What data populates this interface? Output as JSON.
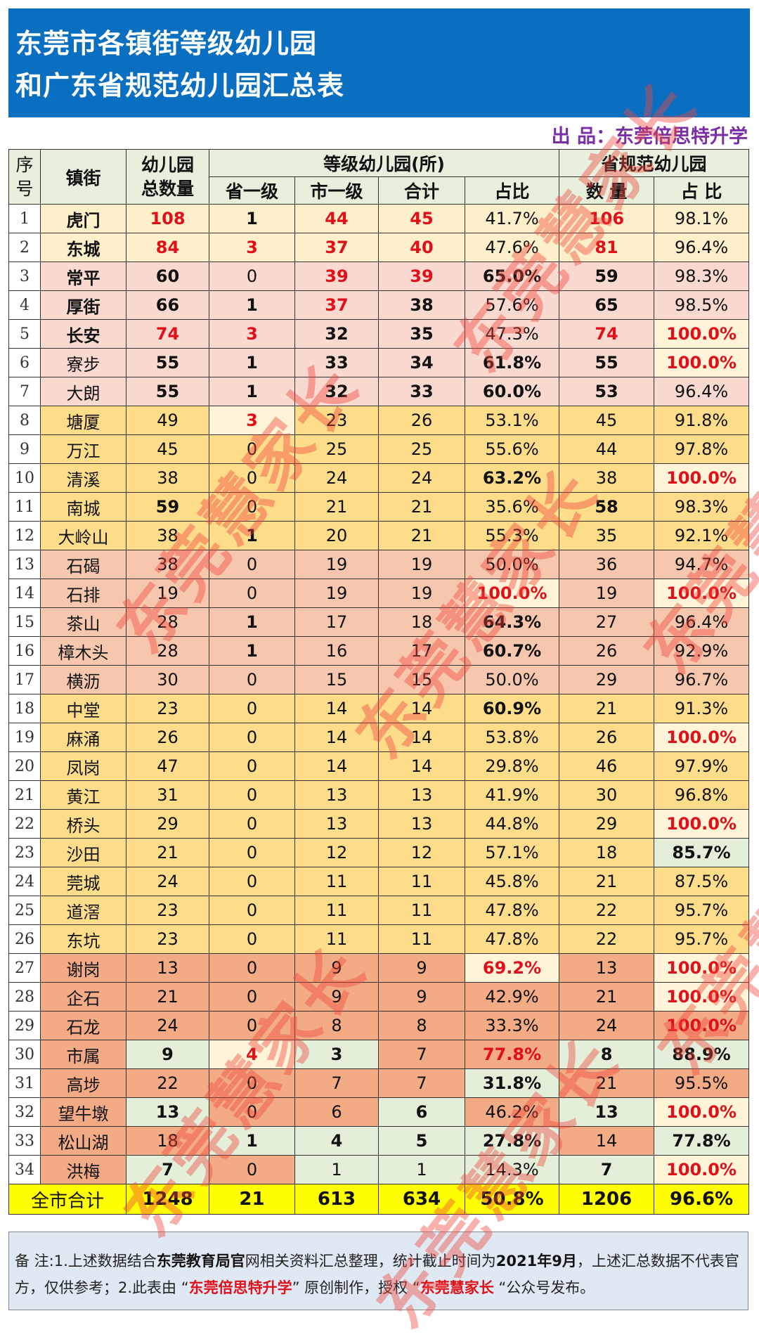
{
  "title": {
    "line1": "东莞市各镇街等级幼儿园",
    "line2": "和广东省规范幼儿园汇总表"
  },
  "credit": "出 品：东莞倍思特升学",
  "watermark": "东莞慧家长",
  "colors": {
    "title_bg": "#0b6fc1",
    "red": "#e0101a",
    "credit": "#7a2fa8",
    "total_bg": "#ffff00",
    "row_bg": {
      "cream": "#fdefc9",
      "pink": "#fadad0",
      "yellow": "#fddd8a",
      "salmonL": "#f6c7ad",
      "salmon": "#f2ab84"
    },
    "cell_bg": {
      "C": "#fff4d8",
      "G": "#e3efd9"
    }
  },
  "header": {
    "index": "序号",
    "town": "镇街",
    "total": "幼儿园总数量",
    "graded_group": "等级幼儿园(所)",
    "standard_group": "省规范幼儿园",
    "sub": [
      "省一级",
      "市一级",
      "合计",
      "占比",
      "数 量",
      "占 比"
    ]
  },
  "rows": [
    {
      "i": "1",
      "bg": "cream",
      "c": [
        [
          "虎门",
          "b"
        ],
        [
          "108",
          "rb"
        ],
        [
          "1",
          "b"
        ],
        [
          "44",
          "rb"
        ],
        [
          "45",
          "rb"
        ],
        [
          "41.7%",
          ""
        ],
        [
          "106",
          "rb"
        ],
        [
          "98.1%",
          ""
        ]
      ]
    },
    {
      "i": "2",
      "bg": "cream",
      "c": [
        [
          "东城",
          "b"
        ],
        [
          "84",
          "rb"
        ],
        [
          "3",
          "rb"
        ],
        [
          "37",
          "rb"
        ],
        [
          "40",
          "rb"
        ],
        [
          "47.6%",
          ""
        ],
        [
          "81",
          "rb"
        ],
        [
          "96.4%",
          ""
        ]
      ]
    },
    {
      "i": "3",
      "bg": "pink",
      "c": [
        [
          "常平",
          "b"
        ],
        [
          "60",
          "b"
        ],
        [
          "0",
          ""
        ],
        [
          "39",
          "rb"
        ],
        [
          "39",
          "rb"
        ],
        [
          "65.0%",
          "b"
        ],
        [
          "59",
          "b"
        ],
        [
          "98.3%",
          ""
        ]
      ]
    },
    {
      "i": "4",
      "bg": "pink",
      "c": [
        [
          "厚街",
          "b"
        ],
        [
          "66",
          "b"
        ],
        [
          "1",
          "b"
        ],
        [
          "37",
          "rb"
        ],
        [
          "38",
          "b"
        ],
        [
          "57.6%",
          ""
        ],
        [
          "65",
          "b"
        ],
        [
          "98.5%",
          ""
        ]
      ]
    },
    {
      "i": "5",
      "bg": "pink",
      "c": [
        [
          "长安",
          "b"
        ],
        [
          "74",
          "rb"
        ],
        [
          "3",
          "rb"
        ],
        [
          "32",
          "b"
        ],
        [
          "35",
          "b"
        ],
        [
          "47.3%",
          ""
        ],
        [
          "74",
          "rb"
        ],
        [
          "100.0%",
          "rbC"
        ]
      ]
    },
    {
      "i": "6",
      "bg": "pink",
      "c": [
        [
          "寮步",
          ""
        ],
        [
          "55",
          "b"
        ],
        [
          "1",
          "b"
        ],
        [
          "33",
          "b"
        ],
        [
          "34",
          "b"
        ],
        [
          "61.8%",
          "b"
        ],
        [
          "55",
          "b"
        ],
        [
          "100.0%",
          "rbC"
        ]
      ]
    },
    {
      "i": "7",
      "bg": "pink",
      "c": [
        [
          "大朗",
          ""
        ],
        [
          "55",
          "b"
        ],
        [
          "1",
          "b"
        ],
        [
          "32",
          "b"
        ],
        [
          "33",
          "b"
        ],
        [
          "60.0%",
          "b"
        ],
        [
          "53",
          "b"
        ],
        [
          "96.4%",
          ""
        ]
      ]
    },
    {
      "i": "8",
      "bg": "yellow",
      "c": [
        [
          "塘厦",
          ""
        ],
        [
          "49",
          ""
        ],
        [
          "3",
          "rbC"
        ],
        [
          "23",
          ""
        ],
        [
          "26",
          ""
        ],
        [
          "53.1%",
          ""
        ],
        [
          "45",
          ""
        ],
        [
          "91.8%",
          ""
        ]
      ]
    },
    {
      "i": "9",
      "bg": "yellow",
      "c": [
        [
          "万江",
          ""
        ],
        [
          "45",
          ""
        ],
        [
          "0",
          ""
        ],
        [
          "25",
          ""
        ],
        [
          "25",
          ""
        ],
        [
          "55.6%",
          ""
        ],
        [
          "44",
          ""
        ],
        [
          "97.8%",
          ""
        ]
      ]
    },
    {
      "i": "10",
      "bg": "yellow",
      "c": [
        [
          "清溪",
          ""
        ],
        [
          "38",
          ""
        ],
        [
          "0",
          ""
        ],
        [
          "24",
          ""
        ],
        [
          "24",
          ""
        ],
        [
          "63.2%",
          "b"
        ],
        [
          "38",
          ""
        ],
        [
          "100.0%",
          "rbC"
        ]
      ]
    },
    {
      "i": "11",
      "bg": "yellow",
      "c": [
        [
          "南城",
          ""
        ],
        [
          "59",
          "b"
        ],
        [
          "0",
          ""
        ],
        [
          "21",
          ""
        ],
        [
          "21",
          ""
        ],
        [
          "35.6%",
          ""
        ],
        [
          "58",
          "b"
        ],
        [
          "98.3%",
          ""
        ]
      ]
    },
    {
      "i": "12",
      "bg": "yellow",
      "c": [
        [
          "大岭山",
          ""
        ],
        [
          "38",
          ""
        ],
        [
          "1",
          "b"
        ],
        [
          "20",
          ""
        ],
        [
          "21",
          ""
        ],
        [
          "55.3%",
          ""
        ],
        [
          "35",
          ""
        ],
        [
          "92.1%",
          ""
        ]
      ]
    },
    {
      "i": "13",
      "bg": "salmonL",
      "c": [
        [
          "石碣",
          ""
        ],
        [
          "38",
          ""
        ],
        [
          "0",
          ""
        ],
        [
          "19",
          ""
        ],
        [
          "19",
          ""
        ],
        [
          "50.0%",
          ""
        ],
        [
          "36",
          ""
        ],
        [
          "94.7%",
          ""
        ]
      ]
    },
    {
      "i": "14",
      "bg": "salmonL",
      "c": [
        [
          "石排",
          ""
        ],
        [
          "19",
          ""
        ],
        [
          "0",
          ""
        ],
        [
          "19",
          ""
        ],
        [
          "19",
          ""
        ],
        [
          "100.0%",
          "rbC"
        ],
        [
          "19",
          ""
        ],
        [
          "100.0%",
          "rbC"
        ]
      ]
    },
    {
      "i": "15",
      "bg": "salmonL",
      "c": [
        [
          "茶山",
          ""
        ],
        [
          "28",
          ""
        ],
        [
          "1",
          "b"
        ],
        [
          "17",
          ""
        ],
        [
          "18",
          ""
        ],
        [
          "64.3%",
          "b"
        ],
        [
          "27",
          ""
        ],
        [
          "96.4%",
          ""
        ]
      ]
    },
    {
      "i": "16",
      "bg": "salmonL",
      "c": [
        [
          "樟木头",
          ""
        ],
        [
          "28",
          ""
        ],
        [
          "1",
          "b"
        ],
        [
          "16",
          ""
        ],
        [
          "17",
          ""
        ],
        [
          "60.7%",
          "b"
        ],
        [
          "26",
          ""
        ],
        [
          "92.9%",
          ""
        ]
      ]
    },
    {
      "i": "17",
      "bg": "salmonL",
      "c": [
        [
          "横沥",
          ""
        ],
        [
          "30",
          ""
        ],
        [
          "0",
          ""
        ],
        [
          "15",
          ""
        ],
        [
          "15",
          ""
        ],
        [
          "50.0%",
          ""
        ],
        [
          "29",
          ""
        ],
        [
          "96.7%",
          ""
        ]
      ]
    },
    {
      "i": "18",
      "bg": "yellow",
      "c": [
        [
          "中堂",
          ""
        ],
        [
          "23",
          ""
        ],
        [
          "0",
          ""
        ],
        [
          "14",
          ""
        ],
        [
          "14",
          ""
        ],
        [
          "60.9%",
          "b"
        ],
        [
          "21",
          ""
        ],
        [
          "91.3%",
          ""
        ]
      ]
    },
    {
      "i": "19",
      "bg": "yellow",
      "c": [
        [
          "麻涌",
          ""
        ],
        [
          "26",
          ""
        ],
        [
          "0",
          ""
        ],
        [
          "14",
          ""
        ],
        [
          "14",
          ""
        ],
        [
          "53.8%",
          ""
        ],
        [
          "26",
          ""
        ],
        [
          "100.0%",
          "rbC"
        ]
      ]
    },
    {
      "i": "20",
      "bg": "yellow",
      "c": [
        [
          "凤岗",
          ""
        ],
        [
          "47",
          ""
        ],
        [
          "0",
          ""
        ],
        [
          "14",
          ""
        ],
        [
          "14",
          ""
        ],
        [
          "29.8%",
          ""
        ],
        [
          "46",
          ""
        ],
        [
          "97.9%",
          ""
        ]
      ]
    },
    {
      "i": "21",
      "bg": "yellow",
      "c": [
        [
          "黄江",
          ""
        ],
        [
          "31",
          ""
        ],
        [
          "0",
          ""
        ],
        [
          "13",
          ""
        ],
        [
          "13",
          ""
        ],
        [
          "41.9%",
          ""
        ],
        [
          "30",
          ""
        ],
        [
          "96.8%",
          ""
        ]
      ]
    },
    {
      "i": "22",
      "bg": "yellow",
      "c": [
        [
          "桥头",
          ""
        ],
        [
          "29",
          ""
        ],
        [
          "0",
          ""
        ],
        [
          "13",
          ""
        ],
        [
          "13",
          ""
        ],
        [
          "44.8%",
          ""
        ],
        [
          "29",
          ""
        ],
        [
          "100.0%",
          "rbC"
        ]
      ]
    },
    {
      "i": "23",
      "bg": "yellow",
      "c": [
        [
          "沙田",
          ""
        ],
        [
          "21",
          ""
        ],
        [
          "0",
          ""
        ],
        [
          "12",
          ""
        ],
        [
          "12",
          ""
        ],
        [
          "57.1%",
          ""
        ],
        [
          "18",
          ""
        ],
        [
          "85.7%",
          "bG"
        ]
      ]
    },
    {
      "i": "24",
      "bg": "yellow",
      "c": [
        [
          "莞城",
          ""
        ],
        [
          "24",
          ""
        ],
        [
          "0",
          ""
        ],
        [
          "11",
          ""
        ],
        [
          "11",
          ""
        ],
        [
          "45.8%",
          ""
        ],
        [
          "21",
          ""
        ],
        [
          "87.5%",
          ""
        ]
      ]
    },
    {
      "i": "25",
      "bg": "yellow",
      "c": [
        [
          "道滘",
          ""
        ],
        [
          "23",
          ""
        ],
        [
          "0",
          ""
        ],
        [
          "11",
          ""
        ],
        [
          "11",
          ""
        ],
        [
          "47.8%",
          ""
        ],
        [
          "22",
          ""
        ],
        [
          "95.7%",
          ""
        ]
      ]
    },
    {
      "i": "26",
      "bg": "yellow",
      "c": [
        [
          "东坑",
          ""
        ],
        [
          "23",
          ""
        ],
        [
          "0",
          ""
        ],
        [
          "11",
          ""
        ],
        [
          "11",
          ""
        ],
        [
          "47.8%",
          ""
        ],
        [
          "22",
          ""
        ],
        [
          "95.7%",
          ""
        ]
      ]
    },
    {
      "i": "27",
      "bg": "salmon",
      "c": [
        [
          "谢岗",
          ""
        ],
        [
          "13",
          ""
        ],
        [
          "0",
          ""
        ],
        [
          "9",
          ""
        ],
        [
          "9",
          ""
        ],
        [
          "69.2%",
          "rbC"
        ],
        [
          "13",
          ""
        ],
        [
          "100.0%",
          "rbC"
        ]
      ]
    },
    {
      "i": "28",
      "bg": "salmon",
      "c": [
        [
          "企石",
          ""
        ],
        [
          "21",
          ""
        ],
        [
          "0",
          ""
        ],
        [
          "9",
          ""
        ],
        [
          "9",
          ""
        ],
        [
          "42.9%",
          ""
        ],
        [
          "21",
          ""
        ],
        [
          "100.0%",
          "rbC"
        ]
      ]
    },
    {
      "i": "29",
      "bg": "salmon",
      "c": [
        [
          "石龙",
          ""
        ],
        [
          "24",
          ""
        ],
        [
          "0",
          ""
        ],
        [
          "8",
          ""
        ],
        [
          "8",
          ""
        ],
        [
          "33.3%",
          ""
        ],
        [
          "24",
          ""
        ],
        [
          "100.0%",
          "rb"
        ]
      ]
    },
    {
      "i": "30",
      "bg": "salmon",
      "c": [
        [
          "市属",
          ""
        ],
        [
          "9",
          "bG"
        ],
        [
          "4",
          "rbC"
        ],
        [
          "3",
          "bG"
        ],
        [
          "7",
          ""
        ],
        [
          "77.8%",
          "rb"
        ],
        [
          "8",
          "bG"
        ],
        [
          "88.9%",
          "bG"
        ]
      ]
    },
    {
      "i": "31",
      "bg": "salmon",
      "c": [
        [
          "高埗",
          ""
        ],
        [
          "22",
          ""
        ],
        [
          "0",
          ""
        ],
        [
          "7",
          ""
        ],
        [
          "7",
          ""
        ],
        [
          "31.8%",
          "bG"
        ],
        [
          "21",
          ""
        ],
        [
          "95.5%",
          ""
        ]
      ]
    },
    {
      "i": "32",
      "bg": "salmon",
      "c": [
        [
          "望牛墩",
          ""
        ],
        [
          "13",
          "bG"
        ],
        [
          "0",
          ""
        ],
        [
          "6",
          ""
        ],
        [
          "6",
          "bG"
        ],
        [
          "46.2%",
          ""
        ],
        [
          "13",
          "bG"
        ],
        [
          "100.0%",
          "rbC"
        ]
      ]
    },
    {
      "i": "33",
      "bg": "salmon",
      "c": [
        [
          "松山湖",
          ""
        ],
        [
          "18",
          ""
        ],
        [
          "1",
          "bG"
        ],
        [
          "4",
          "bG"
        ],
        [
          "5",
          "bG"
        ],
        [
          "27.8%",
          "bG"
        ],
        [
          "14",
          ""
        ],
        [
          "77.8%",
          "bG"
        ]
      ]
    },
    {
      "i": "34",
      "bg": "salmon",
      "c": [
        [
          "洪梅",
          ""
        ],
        [
          "7",
          "bG"
        ],
        [
          "0",
          ""
        ],
        [
          "1",
          "G"
        ],
        [
          "1",
          "G"
        ],
        [
          "14.3%",
          "G"
        ],
        [
          "7",
          "bG"
        ],
        [
          "100.0%",
          "rbC"
        ]
      ]
    }
  ],
  "total": {
    "label": "全市合计",
    "values": [
      "1248",
      "21",
      "613",
      "634",
      "50.8%",
      "1206",
      "96.6%"
    ]
  },
  "note": {
    "p1": "备 注:1.上述数据结合",
    "k1": "东莞教育局官",
    "p2": "网相关资料汇总整理，统计截止时间为",
    "k2": "2021年9月",
    "p3": "，上述汇总数据不代表官方，仅供参考；2.此表由 “",
    "k3": "东莞倍思特升学",
    "p4": "” 原创制作，授权 “",
    "k4": "东莞慧家长",
    "p5": " “公众号发布。"
  }
}
